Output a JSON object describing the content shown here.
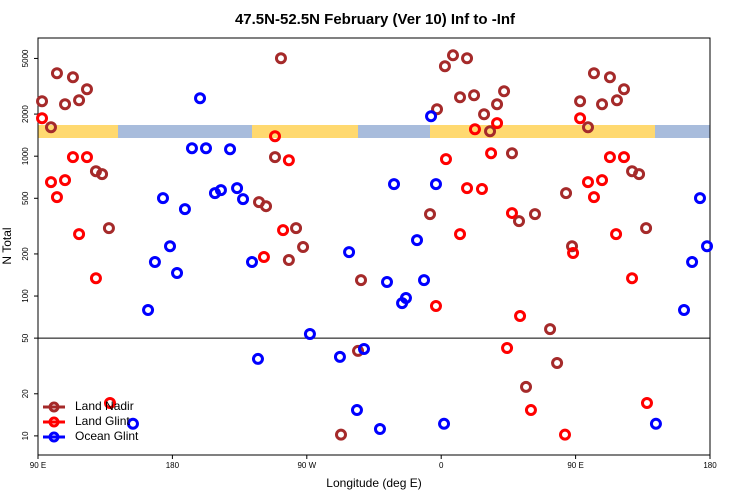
{
  "chart_data": {
    "type": "scatter",
    "title": "47.5N-52.5N February (Ver 10)   Inf to -Inf",
    "xlabel": "Longitude (deg E)",
    "ylabel": "N Total",
    "xlim": [
      90,
      540
    ],
    "ylim": [
      7.3,
      7000
    ],
    "ylog": true,
    "xticks": [
      {
        "value": 90,
        "label": "90 E"
      },
      180,
      {
        "value": 270,
        "label": "90 W"
      },
      {
        "value": 360,
        "label": "0"
      },
      {
        "value": 450,
        "label": "90 E"
      },
      {
        "value": 540,
        "label": "180"
      }
    ],
    "yticks": [
      10,
      20,
      50,
      100,
      200,
      500,
      1000,
      2000,
      5000
    ],
    "hline": 50,
    "legend": "bottom-left",
    "series": [
      {
        "name": "Land Nadir",
        "color": "#a52a2a",
        "x": [
          92.7,
          98.7,
          102.7,
          108.1,
          113.4,
          117.5,
          122.8,
          128.8,
          132.9,
          137.5,
          252.7,
          248.7,
          238,
          242.7,
          262.8,
          267.5,
          258,
          306.3,
          304.3,
          292.9,
          352.5,
          357.2,
          362.5,
          367.9,
          372.6,
          377.3,
          382,
          388.7,
          392.7,
          397.4,
          402.1,
          407.4,
          412.1,
          422.8,
          432.9,
          437.6,
          416.8,
          443.6,
          447.6,
          453,
          458.3,
          462.3,
          467.7,
          473,
          477.7,
          482.4,
          487.8,
          492.5,
          497.2
        ],
        "values": [
          2470,
          1611,
          3917,
          2352,
          3666,
          2512,
          3010,
          781,
          744,
          306,
          5012,
          984,
          469,
          439,
          306,
          224,
          181,
          130,
          40.5,
          10.2,
          385,
          2166,
          4395,
          5264,
          2640,
          5012,
          2729,
          1995,
          1509,
          2352,
          2913,
          1050,
          343,
          385,
          58,
          33.2,
          22.4,
          544,
          227,
          2472,
          1611,
          3917,
          2352,
          3666,
          2512,
          3010,
          781,
          744,
          306
        ]
      },
      {
        "name": "Land Glint",
        "color": "#ff0000",
        "x": [
          92.7,
          98.7,
          102.7,
          108.1,
          113.4,
          117.5,
          122.8,
          128.8,
          138.2,
          248.7,
          258,
          254.1,
          241.3,
          356.5,
          363.2,
          372.6,
          377.3,
          382.6,
          387.3,
          393.4,
          397.4,
          407.4,
          412.8,
          404.1,
          420.1,
          442.9,
          448.3,
          453,
          458.3,
          462.3,
          467.7,
          473,
          477.1,
          482.4,
          487.8,
          497.8
        ],
        "values": [
          1868,
          652,
          510,
          674,
          984,
          277,
          984,
          134,
          17.2,
          1389,
          936,
          296,
          190,
          84.8,
          952,
          277,
          591,
          1559,
          583,
          1050,
          1722,
          392,
          72,
          42.5,
          15.3,
          10.2,
          203,
          1868,
          652,
          510,
          674,
          984,
          277,
          984,
          134,
          17.2
        ]
      },
      {
        "name": "Ocean Glint",
        "color": "#0000ff",
        "x": [
          153.6,
          163.7,
          168.3,
          173.7,
          178.4,
          183.1,
          188.4,
          193.1,
          198.5,
          202.5,
          208.5,
          212.5,
          218.6,
          223.3,
          227.3,
          233.3,
          237.3,
          272.1,
          292.2,
          298.3,
          303.6,
          308.3,
          319,
          323.7,
          333.8,
          336.4,
          328.4,
          343.8,
          348.5,
          353.2,
          356.5,
          361.9,
          503.8,
          522.6,
          528,
          533.3,
          538
        ],
        "values": [
          12.2,
          79.4,
          175,
          501,
          227,
          146,
          418,
          1140,
          2596,
          1140,
          544,
          572,
          1122,
          591,
          493,
          175,
          35.5,
          53.5,
          36.7,
          206,
          15.3,
          41.8,
          11.2,
          126,
          89,
          96.8,
          631,
          251,
          130,
          1931,
          631,
          12.2,
          12.2,
          79.4,
          175,
          501,
          227
        ]
      }
    ]
  }
}
